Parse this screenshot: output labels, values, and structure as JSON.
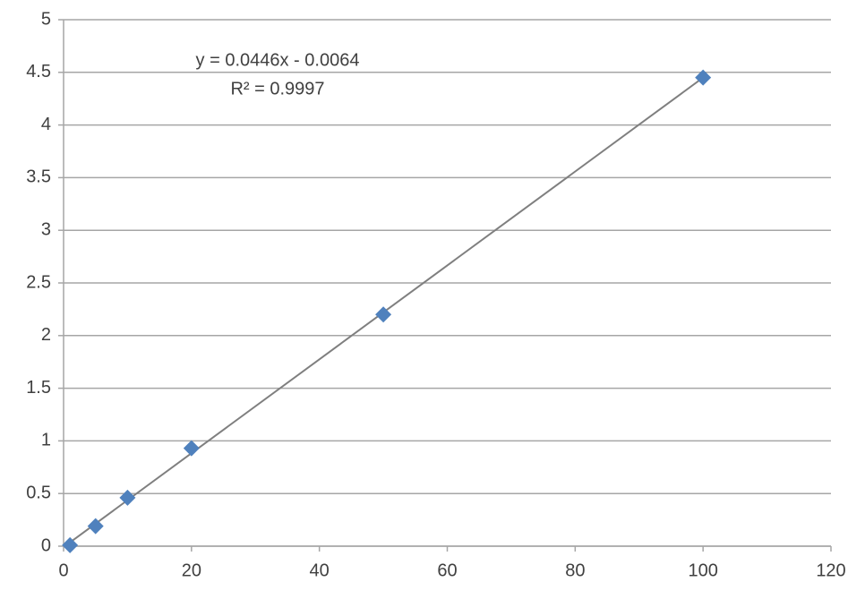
{
  "chart_data": {
    "type": "scatter",
    "series": [
      {
        "color": "#4f81bd",
        "x": [
          1,
          5,
          10,
          20,
          50,
          100
        ],
        "values": [
          0.01,
          0.19,
          0.46,
          0.93,
          2.2,
          4.45
        ]
      }
    ],
    "annotations": [
      "y = 0.0446x - 0.0064",
      "R² = 0.9997"
    ],
    "xlim": [
      0,
      120
    ],
    "xticks": [
      0,
      20,
      40,
      60,
      80,
      100,
      120
    ],
    "ylim": [
      0,
      5
    ],
    "yticks": [
      0,
      0.5,
      1,
      1.5,
      2,
      2.5,
      3,
      3.5,
      4,
      4.5,
      5
    ],
    "grid": true,
    "trendline": true
  }
}
